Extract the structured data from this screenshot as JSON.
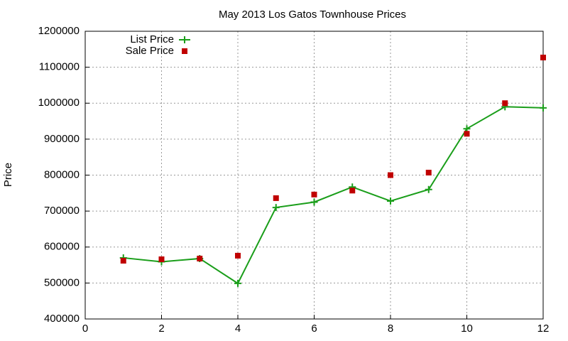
{
  "chart_data": {
    "type": "line",
    "title": "May 2013 Los Gatos Townhouse Prices",
    "y_label": "Price",
    "x": [
      1,
      2,
      3,
      4,
      5,
      6,
      7,
      8,
      9,
      10,
      11,
      12
    ],
    "series": [
      {
        "name": "List Price",
        "color": "#1a9e1a",
        "line": true,
        "marker": "plus",
        "values": [
          570000,
          559000,
          568000,
          499000,
          710000,
          725000,
          767000,
          728000,
          760000,
          929000,
          990000,
          987000
        ]
      },
      {
        "name": "Sale Price",
        "color": "#c00000",
        "line": false,
        "marker": "square",
        "values": [
          562000,
          566000,
          568000,
          576000,
          736000,
          746000,
          757000,
          800000,
          807000,
          915000,
          1000000,
          1127000
        ]
      }
    ],
    "xlim": [
      0,
      12
    ],
    "xticks": [
      0,
      2,
      4,
      6,
      8,
      10,
      12
    ],
    "ylim": [
      400000,
      1200000
    ],
    "yticks": [
      400000,
      500000,
      600000,
      700000,
      800000,
      900000,
      1000000,
      1100000,
      1200000
    ],
    "grid": true,
    "legend": "top-left"
  }
}
